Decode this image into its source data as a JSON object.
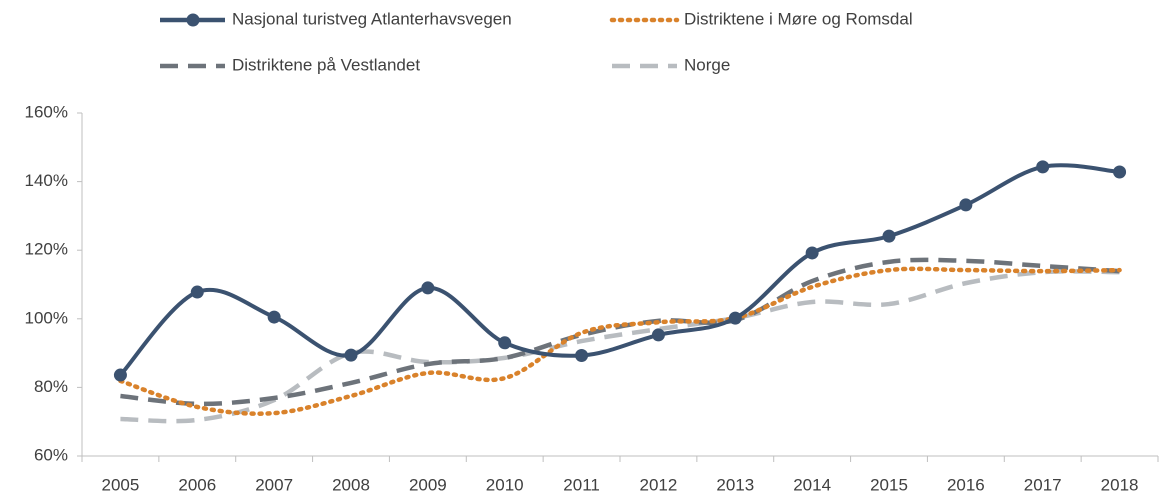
{
  "chart_data": {
    "type": "line",
    "categories": [
      "2005",
      "2006",
      "2007",
      "2008",
      "2009",
      "2010",
      "2011",
      "2012",
      "2013",
      "2014",
      "2015",
      "2016",
      "2017",
      "2018"
    ],
    "series": [
      {
        "name": "Nasjonal turistveg Atlanterhavsvegen",
        "color": "#3b5270",
        "style": "solid",
        "markers": true,
        "values": [
          83.6,
          107.8,
          100.5,
          89.4,
          109,
          93,
          89.3,
          95.3,
          100.2,
          119.2,
          124.1,
          133.2,
          144.3,
          142.8
        ]
      },
      {
        "name": "Distriktene i Møre og Romsdal",
        "color": "#d9822b",
        "style": "dotted",
        "markers": false,
        "values": [
          81.9,
          74.3,
          72.5,
          77.5,
          84.2,
          82.7,
          95.9,
          99,
          100.2,
          109.3,
          114.2,
          114.2,
          113.9,
          114.2
        ]
      },
      {
        "name": "Distriktene på Vestlandet",
        "color": "#6d737a",
        "style": "dashed",
        "markers": false,
        "values": [
          77.5,
          75.2,
          76.9,
          81.3,
          86.8,
          88.6,
          95.3,
          99.4,
          99.6,
          111,
          116.6,
          116.9,
          115.4,
          113.9
        ]
      },
      {
        "name": "Norge",
        "color": "#b8bcc0",
        "style": "dashed",
        "markers": false,
        "values": [
          70.8,
          70.5,
          76.3,
          90,
          87.4,
          88.6,
          93.5,
          97,
          100.2,
          104.9,
          104.3,
          110.4,
          113.6,
          113.6
        ]
      }
    ],
    "ylim": [
      60,
      160
    ],
    "yticks": [
      {
        "value": 60,
        "label": "60%"
      },
      {
        "value": 80,
        "label": "80%"
      },
      {
        "value": 100,
        "label": "100%"
      },
      {
        "value": 120,
        "label": "120%"
      },
      {
        "value": 140,
        "label": "140%"
      },
      {
        "value": 160,
        "label": "160%"
      }
    ],
    "grid": false,
    "legend": "top",
    "smooth": true
  }
}
